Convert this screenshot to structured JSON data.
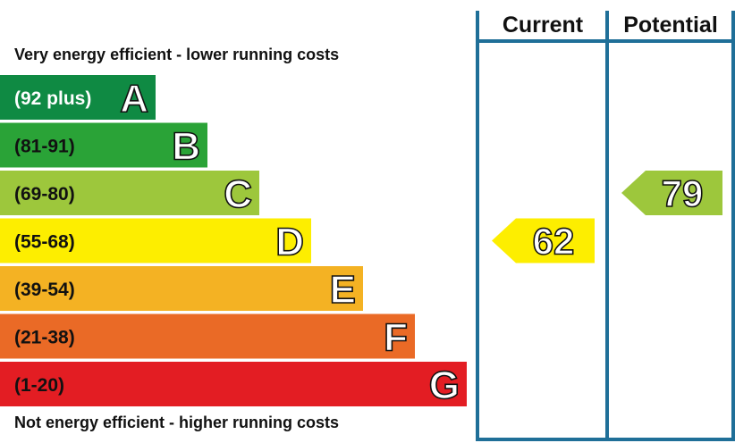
{
  "header": {
    "current_label": "Current",
    "potential_label": "Potential"
  },
  "captions": {
    "top": "Very energy efficient - lower running costs",
    "bottom": "Not energy efficient - higher running costs"
  },
  "colors": {
    "frame": "#1f6f98"
  },
  "chart_data": {
    "type": "bar",
    "bands": [
      {
        "letter": "A",
        "range": "(92 plus)",
        "color": "#0f8a43"
      },
      {
        "letter": "B",
        "range": "(81-91)",
        "color": "#2aa337"
      },
      {
        "letter": "C",
        "range": "(69-80)",
        "color": "#9dc73c"
      },
      {
        "letter": "D",
        "range": "(55-68)",
        "color": "#fdee00"
      },
      {
        "letter": "E",
        "range": "(39-54)",
        "color": "#f4b223"
      },
      {
        "letter": "F",
        "range": "(21-38)",
        "color": "#ea6a26"
      },
      {
        "letter": "G",
        "range": "(1-20)",
        "color": "#e31d23"
      }
    ],
    "current": {
      "value": 62,
      "band": "D",
      "color": "#fdee00"
    },
    "potential": {
      "value": 79,
      "band": "C",
      "color": "#9dc73c"
    }
  }
}
